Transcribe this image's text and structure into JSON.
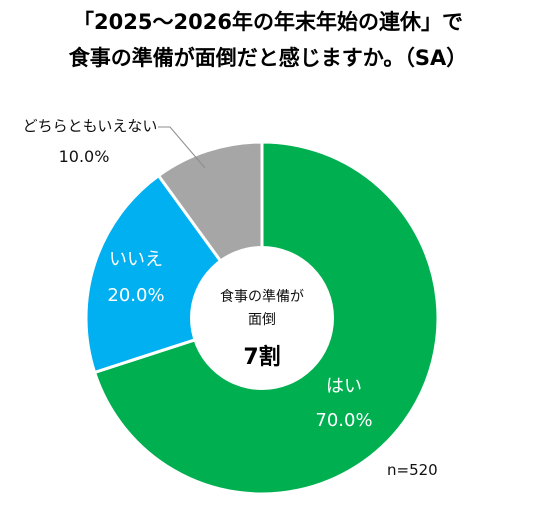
{
  "title_line1": "「2025～2026年の年末年始の連休」で",
  "title_line2": "食事の準備が面倒だと感じますか。（SA）",
  "center": {
    "line1": "食事の準備が",
    "line2": "面倒",
    "value": "7割"
  },
  "sample_note": "n=520",
  "chart_data": {
    "type": "pie",
    "variant": "donut",
    "categories": [
      "はい",
      "いいえ",
      "どちらともいえない"
    ],
    "values": [
      70.0,
      20.0,
      10.0
    ],
    "value_labels": [
      "70.0%",
      "20.0%",
      "10.0%"
    ],
    "colors": [
      "#00b050",
      "#00b0f0",
      "#a6a6a6"
    ],
    "start": "12 o'clock",
    "direction": "clockwise"
  }
}
